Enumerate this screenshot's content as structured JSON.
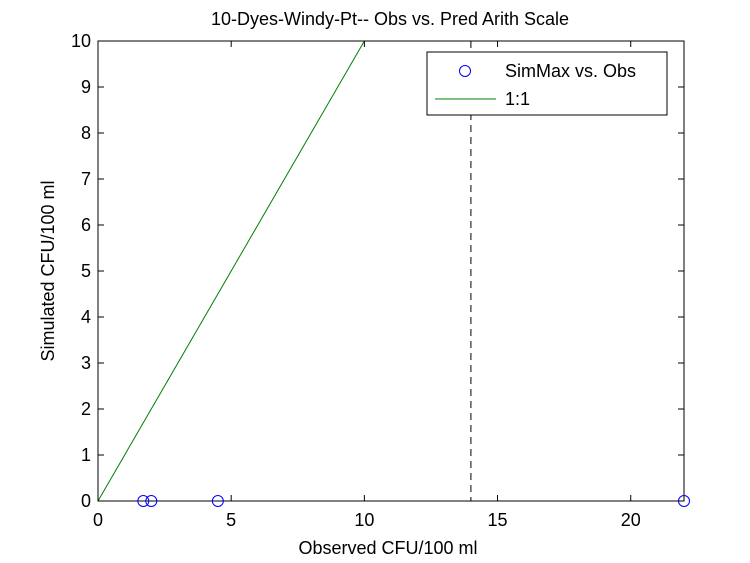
{
  "chart_data": {
    "type": "scatter",
    "title": "10-Dyes-Windy-Pt-- Obs vs. Pred Arith Scale",
    "xlabel": "Observed CFU/100 ml",
    "ylabel": "Simulated CFU/100 ml",
    "xlim": [
      0,
      22
    ],
    "ylim": [
      0,
      10
    ],
    "xticks": [
      0,
      5,
      10,
      15,
      20
    ],
    "yticks": [
      0,
      1,
      2,
      3,
      4,
      5,
      6,
      7,
      8,
      9,
      10
    ],
    "grid": false,
    "legend_position": "top-right",
    "series": [
      {
        "name": "SimMax vs. Obs",
        "kind": "scatter",
        "marker": "circle",
        "color": "#0000ff",
        "x": [
          1.7,
          2.0,
          4.5,
          22.0
        ],
        "y": [
          0,
          0,
          0,
          0
        ]
      },
      {
        "name": "1:1",
        "kind": "line",
        "color": "#008000",
        "x": [
          0,
          10
        ],
        "y": [
          0,
          10
        ]
      }
    ],
    "reference_lines": [
      {
        "orientation": "vertical",
        "x": 14,
        "style": "dashed",
        "color": "#000000"
      }
    ]
  }
}
